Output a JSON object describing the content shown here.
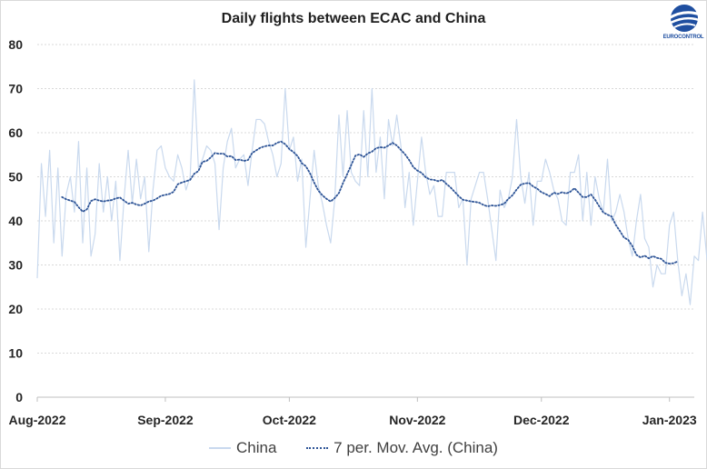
{
  "chart_data": {
    "type": "line",
    "title": "Daily flights between ECAC and China",
    "xlabel": "",
    "ylabel": "",
    "ylim": [
      0,
      80
    ],
    "yticks": [
      0,
      10,
      20,
      30,
      40,
      50,
      60,
      70,
      80
    ],
    "x_tick_labels": [
      {
        "label": "Aug-2022",
        "day": 0
      },
      {
        "label": "Sep-2022",
        "day": 31
      },
      {
        "label": "Oct-2022",
        "day": 61
      },
      {
        "label": "Nov-2022",
        "day": 92
      },
      {
        "label": "Dec-2022",
        "day": 122
      },
      {
        "label": "Jan-2023",
        "day": 153
      }
    ],
    "x_range_days": [
      0,
      159
    ],
    "series": [
      {
        "name": "China",
        "style": "solid",
        "color": "#c9d9ee",
        "values": [
          27,
          53,
          41,
          56,
          35,
          52,
          32,
          46,
          50,
          42,
          58,
          35,
          52,
          32,
          37,
          53,
          42,
          50,
          40,
          49,
          31,
          45,
          56,
          44,
          54,
          45,
          50,
          33,
          47,
          56,
          57,
          52,
          50,
          49,
          55,
          52,
          47,
          50,
          72,
          52,
          54,
          57,
          56,
          53,
          38,
          52,
          58,
          61,
          52,
          54,
          55,
          48,
          56,
          63,
          63,
          62,
          58,
          55,
          50,
          53,
          70,
          56,
          59,
          49,
          54,
          34,
          45,
          56,
          48,
          44,
          39,
          35,
          45,
          64,
          50,
          65,
          51,
          49,
          48,
          65,
          50,
          70,
          51,
          59,
          45,
          63,
          57,
          64,
          57,
          43,
          51,
          39,
          49,
          59,
          51,
          46,
          48,
          41,
          41,
          51,
          51,
          51,
          43,
          45,
          30,
          45,
          48,
          51,
          51,
          45,
          38,
          31,
          47,
          43,
          45,
          50,
          63,
          50,
          44,
          51,
          39,
          49,
          49,
          54,
          51,
          47,
          45,
          40,
          39,
          51,
          51,
          55,
          40,
          51,
          39,
          50,
          45,
          42,
          54,
          40,
          42,
          46,
          42,
          36,
          32,
          40,
          46,
          36,
          34,
          25,
          30,
          28,
          28,
          39,
          42,
          31,
          23,
          28,
          21,
          32,
          31,
          42,
          32,
          25
        ]
      },
      {
        "name": "7 per. Mov. Avg. (China)",
        "style": "dotted",
        "color": "#2f5597",
        "values": [
          null,
          null,
          null,
          null,
          null,
          null,
          45.4,
          44.9,
          44.6,
          44.3,
          43.1,
          42.1,
          42.6,
          44.5,
          44.9,
          44.6,
          44.4,
          44.6,
          44.7,
          45.1,
          45.3,
          44.6,
          43.9,
          44.1,
          43.7,
          43.5,
          43.9,
          44.4,
          44.6,
          45.1,
          45.7,
          45.9,
          46.1,
          46.6,
          48.3,
          48.7,
          49.0,
          49.3,
          50.7,
          51.3,
          53.4,
          53.6,
          54.4,
          55.4,
          55.2,
          55.3,
          54.6,
          54.7,
          53.8,
          53.9,
          53.6,
          53.8,
          55.4,
          56.0,
          56.6,
          56.9,
          57.1,
          57.1,
          57.7,
          58.0,
          57.4,
          56.3,
          55.6,
          54.7,
          53.1,
          52.4,
          50.8,
          48.7,
          46.9,
          45.8,
          45.0,
          44.4,
          45.2,
          46.3,
          48.6,
          50.6,
          52.7,
          54.8,
          55.1,
          54.5,
          55.3,
          55.7,
          56.5,
          56.7,
          56.6,
          57.1,
          57.7,
          57.1,
          56.1,
          55.1,
          53.8,
          52.2,
          51.4,
          50.9,
          49.9,
          49.4,
          49.3,
          49.0,
          49.3,
          48.4,
          47.6,
          46.6,
          45.6,
          44.8,
          44.6,
          44.4,
          44.3,
          44.1,
          43.6,
          43.3,
          43.5,
          43.4,
          43.6,
          43.9,
          45.0,
          45.8,
          47.1,
          48.2,
          48.5,
          48.6,
          47.8,
          47.3,
          46.5,
          46.1,
          45.6,
          46.4,
          46.1,
          46.5,
          46.2,
          46.6,
          47.4,
          46.4,
          45.4,
          45.4,
          46.0,
          44.8,
          43.3,
          41.9,
          41.4,
          41.0,
          39.1,
          37.7,
          36.2,
          35.7,
          34.3,
          32.3,
          31.7,
          32.1,
          31.5,
          32.0,
          31.6,
          31.4,
          30.5,
          30.3,
          30.4,
          30.8
        ]
      }
    ]
  },
  "logo_text": "EUROCONTROL",
  "legend": {
    "china_label": "China",
    "mavg_label": "7 per. Mov. Avg. (China)"
  }
}
